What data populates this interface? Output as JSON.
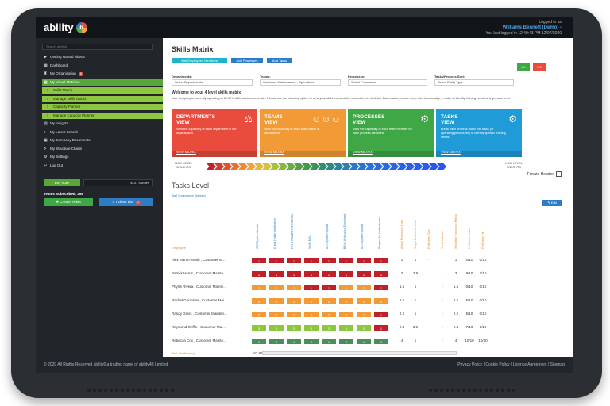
{
  "header": {
    "logo_text": "ability",
    "logo_mark": "6",
    "logged_in_as": "Logged in as",
    "user": "Williams Bennett (Demo) -",
    "last_login": "You last logged in 12:49:43 PM 12/07/2020"
  },
  "sidebar": {
    "search_placeholder": "Search ability6",
    "items": [
      {
        "label": "Getting started videos",
        "style": "normal",
        "icon": "video-icon"
      },
      {
        "label": "Dashboard",
        "style": "normal",
        "icon": "dashboard-icon"
      },
      {
        "label": "My Organisation",
        "style": "normal",
        "icon": "org-icon",
        "badge": "5"
      },
      {
        "label": "My Visual Matrices",
        "style": "green",
        "icon": "grid-icon"
      },
      {
        "label": "Skills Matrix",
        "style": "yellow",
        "icon": "chevron-right-icon"
      },
      {
        "label": "Manage Skills Matrix",
        "style": "yellow",
        "icon": "chevron-right-icon"
      },
      {
        "label": "Capacity Planner",
        "style": "yellow",
        "icon": "chevron-right-icon"
      },
      {
        "label": "Manage Capacity Planner",
        "style": "yellow",
        "icon": "chevron-right-icon"
      },
      {
        "label": "My Insights",
        "style": "normal",
        "icon": "insights-icon"
      },
      {
        "label": "My Latest Search",
        "style": "normal",
        "icon": "search-icon"
      },
      {
        "label": "My Company Documents",
        "style": "normal",
        "icon": "documents-icon"
      },
      {
        "label": "My Structure Charts",
        "style": "normal",
        "icon": "structure-icon"
      },
      {
        "label": "My Settings",
        "style": "normal",
        "icon": "gear-icon"
      },
      {
        "label": "Log Out",
        "style": "normal",
        "icon": "logout-icon"
      }
    ],
    "buy_now": "Buy now!",
    "credit": "$107 Sub left",
    "teams_label": "Teams Subscribed: 298",
    "create_ticket": "Create Ticket",
    "tickets_list": "Tickets List",
    "tickets_badge": "0"
  },
  "main": {
    "title": "Skills Matrix",
    "buttons": {
      "add_employee": "Add Employees Members",
      "add_process": "Add Processes",
      "add_task": "Add Tasks"
    },
    "lang": {
      "uk": "UK",
      "us": "US"
    },
    "filters": [
      {
        "label": "Departments:",
        "value": "Select Departments"
      },
      {
        "label": "Teams:",
        "value": "Customer Maintenance , Operations"
      },
      {
        "label": "Processes:",
        "value": "Select Processes"
      },
      {
        "label": "Tasks/Process Sort:",
        "value": "Select Entity Type"
      }
    ],
    "welcome": "Welcome to your 4 level skills matrix",
    "intro": "Your company is currently operating at 62.17% skills achievement rate. Please use the following option to view your skills matrix at the various levels of detail. Each matrix provide deep dive functionality, in order to identify training needs at a granular level.",
    "cards": [
      {
        "title1": "DEPARTMENTS",
        "title2": "VIEW",
        "desc": "View the capability of each department in the organisation.",
        "link": "VIEW MATRIX",
        "color": "#e94b3c",
        "icon": "scales-icon"
      },
      {
        "title1": "TEAMS",
        "title2": "VIEW",
        "desc": "View the capability of each team within a department.",
        "link": "VIEW MATRIX",
        "color": "#f29a36",
        "icon": "team-icon"
      },
      {
        "title1": "PROCESSES",
        "title2": "VIEW",
        "desc": "View the capability of each team member for each process identified.",
        "link": "VIEW MATRIX",
        "color": "#3fa746",
        "icon": "cog-icon"
      },
      {
        "title1": "TASKS",
        "title2": "VIEW",
        "desc": "Break each process down into tasks (or operating procedures) to identify specific training needs.",
        "link": "VIEW MATRIX",
        "color": "#1f9bd7",
        "icon": "cogs-icon"
      }
    ],
    "weight_high": "HIGH LEVEL WEIGHTS",
    "weight_low": "LOW LEVEL WEIGHTS",
    "freeze_header": "Freeze Header",
    "tasks_title": "Tasks Level",
    "staff_link": "Staff Competence Statistics",
    "edit": "Edit",
    "employee_header": "Employee",
    "task_columns": [
      "ACT System Update",
      "Credit Holder Verification",
      "PSTN Request Form to HSC",
      "Verify MSA",
      "ACT System Update",
      "Bill to Verification Enrollment",
      "ACT System Update",
      "Request for Verification to..."
    ],
    "stat_columns": [
      "Actual Proficiency Level",
      "Target Proficiency Level",
      "Proficiency Gap",
      "Trend Indicator",
      "Weighted Proficiency Rating",
      "Proficiency Index",
      "Proficiency %"
    ],
    "employees": [
      {
        "name": "Alex Martin-Smith , Customer M...",
        "scores": [
          "1",
          "1",
          "1",
          "1",
          "1",
          "1",
          "1",
          "1"
        ],
        "stats": [
          "1",
          "1",
          "***",
          "1",
          "0/10",
          "0/10"
        ],
        "trend": "none"
      },
      {
        "name": "Patrick Harris , Customer Mainte...",
        "scores": [
          "1",
          "1",
          "1",
          "1",
          "1",
          "1",
          "1",
          "1"
        ],
        "stats": [
          "2",
          "3.9",
          "",
          "3",
          "9/10",
          "1/10"
        ],
        "trend": "down"
      },
      {
        "name": "Phyllis Rivera , Customer Mainte...",
        "scores": [
          "2",
          "2",
          "2",
          "1",
          "1",
          "2",
          "2",
          "1"
        ],
        "stats": [
          "1.5",
          "1",
          "",
          "1.5",
          "0/10",
          "0/10"
        ],
        "trend": "up"
      },
      {
        "name": "Rachel Gonzales , Customer Mai...",
        "scores": [
          "2",
          "2",
          "2",
          "2",
          "2",
          "2",
          "2",
          "2"
        ],
        "stats": [
          "2.5",
          "1",
          "",
          "2.5",
          "5/10",
          "0/10"
        ],
        "trend": "up"
      },
      {
        "name": "Randy Davis , Customer Mainten...",
        "scores": [
          "2",
          "2",
          "2",
          "2",
          "2",
          "2",
          "2",
          "1"
        ],
        "stats": [
          "2.2",
          "1",
          "",
          "2.2",
          "5/10",
          "0/10"
        ],
        "trend": "up"
      },
      {
        "name": "Raymond Griffin , Customer Mai...",
        "scores": [
          "3",
          "3",
          "3",
          "3",
          "3",
          "3",
          "3",
          "1"
        ],
        "stats": [
          "2.4",
          "3.6",
          "",
          "2.4",
          "7/10",
          "0/10"
        ],
        "trend": "down"
      },
      {
        "name": "Rebecca Cox , Customer Mainte...",
        "scores": [
          "4",
          "4",
          "4",
          "4",
          "4",
          "4",
          "4",
          "4"
        ],
        "stats": [
          "4",
          "1",
          "",
          "4",
          "10/10",
          "10/10"
        ],
        "trend": "up"
      }
    ],
    "task_proficiency_label": "Task Proficiency",
    "task_proficiency": [
      "67.86%",
      "67.86%",
      "67.86%",
      "64.29%",
      "60.71%",
      "57.14%",
      "67.86%",
      "46.43%"
    ],
    "score_colors": {
      "1": "#c0202a",
      "2": "#f29a36",
      "3": "#8dc63f",
      "4": "#4a8f5a"
    }
  },
  "footer": {
    "copyright": "© 2020 All Rights Reserved ability6 a trading name of ability4B Limited",
    "links": [
      "Privacy Policy",
      "Cookie Policy",
      "Licence Agreement",
      "Sitemap"
    ]
  }
}
